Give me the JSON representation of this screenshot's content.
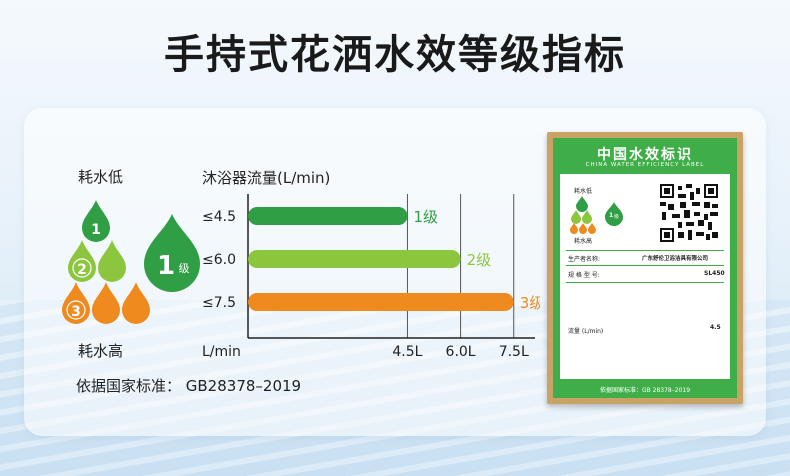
{
  "title": "手持式花洒水效等级指标",
  "legend": {
    "low": "耗水低",
    "high": "耗水高"
  },
  "drops": [
    {
      "grade": "1",
      "color": "#2f9e44"
    },
    {
      "grade": "2",
      "color": "#8cc63f"
    },
    {
      "grade": "3",
      "color": "#ef8a1e"
    }
  ],
  "big_badge": {
    "num": "1",
    "unit": "级",
    "color": "#2f9e44"
  },
  "chart_data": {
    "type": "bar",
    "orientation": "horizontal",
    "title": "沐浴器流量(L/min)",
    "xlabel": "L/min",
    "categories": [
      "≤4.5",
      "≤6.0",
      "≤7.5"
    ],
    "values": [
      4.5,
      6.0,
      7.5
    ],
    "bar_labels": [
      "1级",
      "2级",
      "3级"
    ],
    "colors": [
      "#2f9e44",
      "#8cc63f",
      "#ef8a1e"
    ],
    "x_ticks": [
      "4.5L",
      "6.0L",
      "7.5L"
    ],
    "x_tick_values": [
      4.5,
      6.0,
      7.5
    ],
    "xlim": [
      0,
      8.1
    ]
  },
  "standard": "依据国家标准：  GB28378–2019",
  "label_panel": {
    "title": "中国水效标识",
    "subtitle": "CHINA WATER EFFICIENCY LABEL",
    "low": "耗水低",
    "high": "耗水高",
    "grade": "1",
    "grade_unit": "级",
    "maker_label": "生产者名称:",
    "maker_value": "广东舒伦卫浴洁具有限公司",
    "model_label": "规 格 型 号:",
    "model_value": "SL450",
    "flow_label": "流量 (L/min)",
    "flow_value": "4.5",
    "footer": "依据国家标准：GB 28378–2019"
  }
}
